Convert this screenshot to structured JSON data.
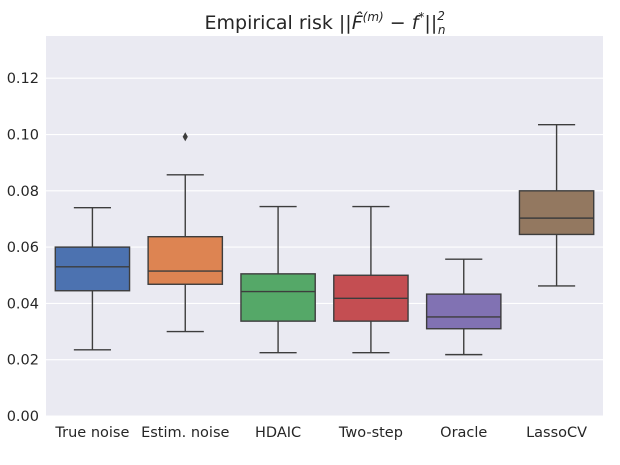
{
  "chart_data": {
    "type": "boxplot",
    "title_parts": {
      "prefix": "Empirical risk ",
      "norm_open": "||",
      "F_hat": "F̂",
      "sup_m": "(m)",
      "minus": " − ",
      "f": "f",
      "sup_star": "*",
      "norm_close": "||",
      "sub_n": "n",
      "sup_2": "2"
    },
    "ylim": [
      0.0,
      0.135
    ],
    "yticks": [
      "0.00",
      "0.02",
      "0.04",
      "0.06",
      "0.08",
      "0.10",
      "0.12"
    ],
    "ytick_values": [
      0.0,
      0.02,
      0.04,
      0.06,
      0.08,
      0.1,
      0.12
    ],
    "grid": true,
    "background": "#eaeaf2",
    "series": [
      {
        "category": "True noise",
        "whisker_low": 0.0235,
        "q1": 0.0445,
        "median": 0.053,
        "q3": 0.06,
        "whisker_high": 0.074,
        "outliers": [],
        "color": "#4c72b0"
      },
      {
        "category": "Estim. noise",
        "whisker_low": 0.03,
        "q1": 0.0468,
        "median": 0.0515,
        "q3": 0.0637,
        "whisker_high": 0.0857,
        "outliers": [
          0.0992
        ],
        "color": "#dd8452"
      },
      {
        "category": "HDAIC",
        "whisker_low": 0.0225,
        "q1": 0.0337,
        "median": 0.0442,
        "q3": 0.0505,
        "whisker_high": 0.0744,
        "outliers": [],
        "color": "#55a868"
      },
      {
        "category": "Two-step",
        "whisker_low": 0.0225,
        "q1": 0.0337,
        "median": 0.0418,
        "q3": 0.05,
        "whisker_high": 0.0744,
        "outliers": [],
        "color": "#c44e52"
      },
      {
        "category": "Oracle",
        "whisker_low": 0.0218,
        "q1": 0.031,
        "median": 0.0352,
        "q3": 0.0433,
        "whisker_high": 0.0557,
        "outliers": [],
        "color": "#8172b3"
      },
      {
        "category": "LassoCV",
        "whisker_low": 0.0462,
        "q1": 0.0645,
        "median": 0.0703,
        "q3": 0.08,
        "whisker_high": 0.1035,
        "outliers": [],
        "color": "#937860"
      }
    ]
  }
}
